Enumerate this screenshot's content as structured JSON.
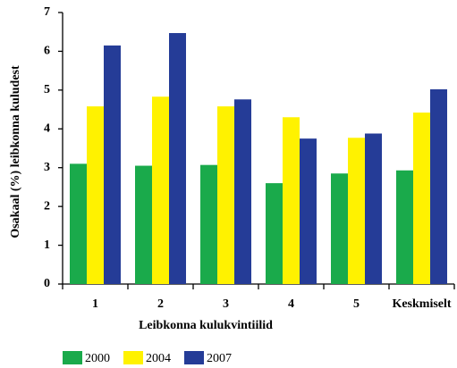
{
  "chart_data": {
    "type": "bar",
    "x_label": "Leibkonna kulukvintiilid",
    "y_label": "Osakaal (%) leibkonna kuludest",
    "categories": [
      "1",
      "2",
      "3",
      "4",
      "5",
      "Keskmiselt"
    ],
    "series": [
      {
        "name": "2000",
        "color": "#1aaa4b",
        "values": [
          3.1,
          3.05,
          3.07,
          2.6,
          2.85,
          2.93
        ]
      },
      {
        "name": "2004",
        "color": "#fff200",
        "values": [
          4.58,
          4.83,
          4.58,
          4.3,
          3.77,
          4.42
        ]
      },
      {
        "name": "2007",
        "color": "#253c97",
        "values": [
          6.15,
          6.47,
          4.76,
          3.75,
          3.88,
          5.02
        ]
      }
    ],
    "ylim": [
      0,
      7
    ],
    "yticks": [
      0,
      1,
      2,
      3,
      4,
      5,
      6,
      7
    ],
    "grid": false,
    "legend": "bottom"
  }
}
